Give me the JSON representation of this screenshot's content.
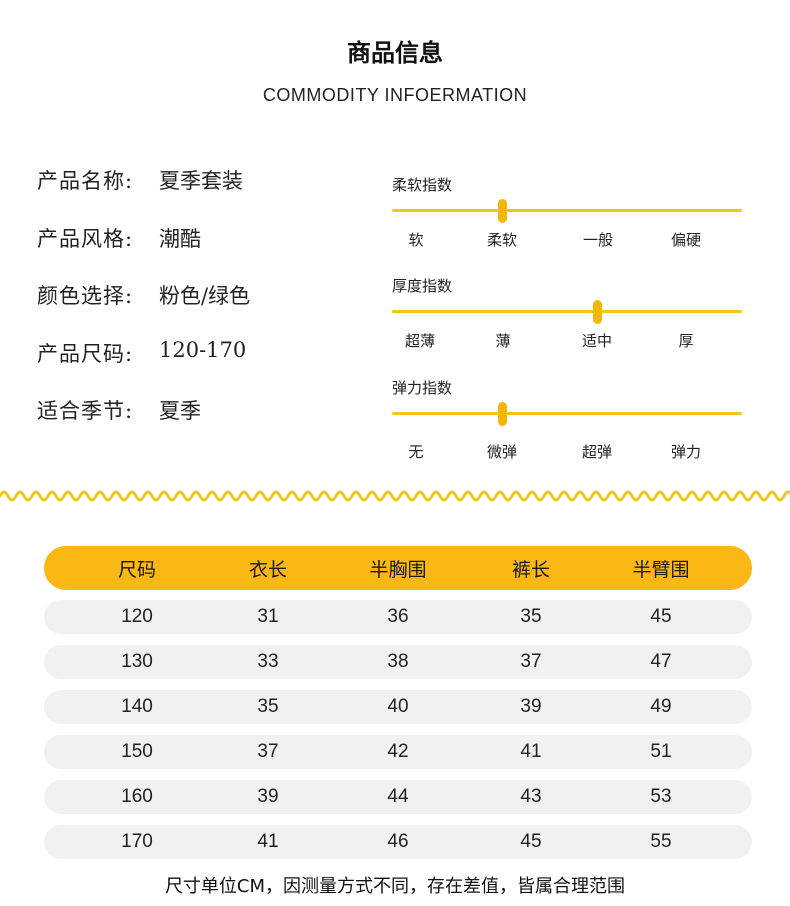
{
  "header": {
    "title_cn": "商品信息",
    "title_en": "COMMODITY INFOERMATION"
  },
  "info": [
    {
      "label": "产品名称:",
      "value": "夏季套装"
    },
    {
      "label": "产品风格:",
      "value": "潮酷"
    },
    {
      "label": "颜色选择:",
      "value": "粉色/绿色"
    },
    {
      "label": "产品尺码:",
      "value": "120-170"
    },
    {
      "label": "适合季节:",
      "value": "夏季"
    }
  ],
  "indices": [
    {
      "title": "柔软指数",
      "ticks": [
        "软",
        "柔软",
        "一般",
        "偏硬"
      ],
      "level_index": 1
    },
    {
      "title": "厚度指数",
      "ticks": [
        "超薄",
        "薄",
        "适中",
        "厚"
      ],
      "level_index": 2
    },
    {
      "title": "弹力指数",
      "ticks": [
        "无",
        "微弹",
        "超弹",
        "弹力"
      ],
      "level_index": 1
    }
  ],
  "accent_color": "#fbb713",
  "table": {
    "headers": [
      "尺码",
      "衣长",
      "半胸围",
      "裤长",
      "半臂围"
    ],
    "rows": [
      [
        "120",
        "31",
        "36",
        "35",
        "45"
      ],
      [
        "130",
        "33",
        "38",
        "37",
        "47"
      ],
      [
        "140",
        "35",
        "40",
        "39",
        "49"
      ],
      [
        "150",
        "37",
        "42",
        "41",
        "51"
      ],
      [
        "160",
        "39",
        "44",
        "43",
        "53"
      ],
      [
        "170",
        "41",
        "46",
        "45",
        "55"
      ]
    ]
  },
  "footnote": "尺寸单位CM，因测量方式不同，存在差值，皆属合理范围"
}
